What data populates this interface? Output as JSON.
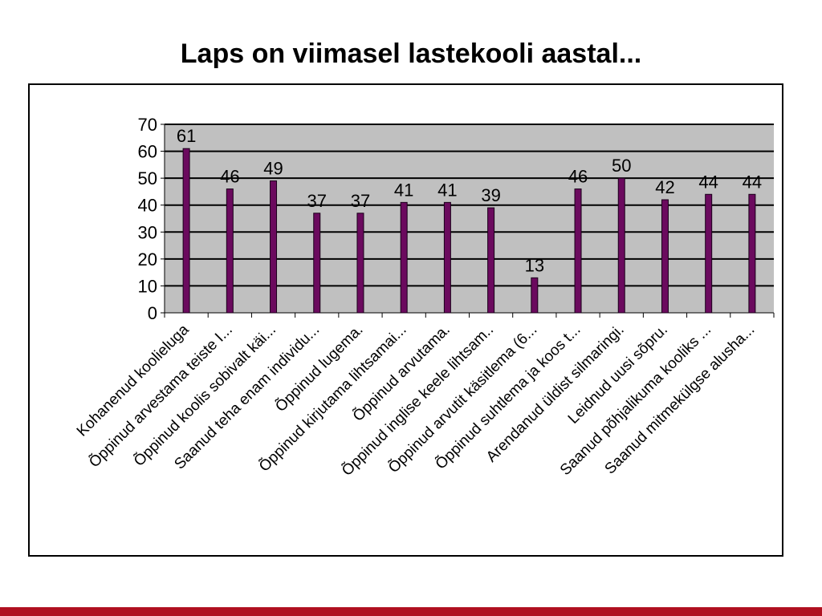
{
  "slide": {
    "title": "Laps on viimasel lastekooli aastal..."
  },
  "theme": {
    "plot_bg": "#c0c0c0",
    "bar_color": "#6b0a5e",
    "bar_border": "#1a001a",
    "accent_bar": "#b01020"
  },
  "chart_data": {
    "type": "bar",
    "title": "",
    "xlabel": "",
    "ylabel": "",
    "ylim": [
      0,
      70
    ],
    "yticks": [
      "0",
      "10",
      "20",
      "30",
      "40",
      "50",
      "60",
      "70"
    ],
    "grid": true,
    "legend": "none",
    "categories": [
      "Kohanenud koolieluga",
      "Õppinud arvestama teiste I...",
      "Õppinud koolis sobivalt käi...",
      "Saanud teha enam individu...",
      "Õppinud lugema.",
      "Õppinud kirjutama lihtsamai...",
      "Õppinud arvutama.",
      "Õppinud inglise keele lihtsam..",
      "Õppinud arvutit käsitlema (6...",
      "Õppinud suhtlema ja koos t...",
      "Arendanud üldist silmaringi.",
      "Leidnud uusi sõpru.",
      "Saanud põhjalikuma kooliks ...",
      "Saanud mitmekülgse alusha..."
    ],
    "values": [
      61,
      46,
      49,
      37,
      37,
      41,
      41,
      39,
      13,
      46,
      50,
      42,
      44,
      44
    ]
  }
}
